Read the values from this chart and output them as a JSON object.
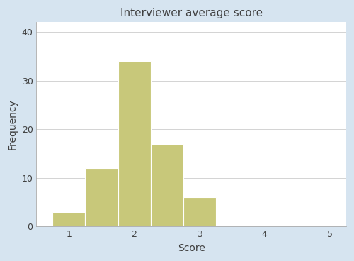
{
  "title": "Interviewer average score",
  "xlabel": "Score",
  "ylabel": "Frequency",
  "bar_color": "#C8C87A",
  "bar_edgecolor": "#FFFFFF",
  "background_color": "#D6E4F0",
  "plot_background": "#FFFFFF",
  "xlim": [
    0.5,
    5.25
  ],
  "ylim": [
    0,
    42
  ],
  "xticks": [
    1,
    2,
    3,
    4,
    5
  ],
  "yticks": [
    0,
    10,
    20,
    30,
    40
  ],
  "bin_left": [
    0.75,
    1.25,
    1.75,
    2.25,
    2.75
  ],
  "bar_heights": [
    3,
    12,
    34,
    17,
    6
  ],
  "bar_width": 0.5,
  "title_fontsize": 11,
  "label_fontsize": 10,
  "tick_fontsize": 9,
  "title_color": "#404040",
  "label_color": "#404040",
  "tick_color": "#404040"
}
